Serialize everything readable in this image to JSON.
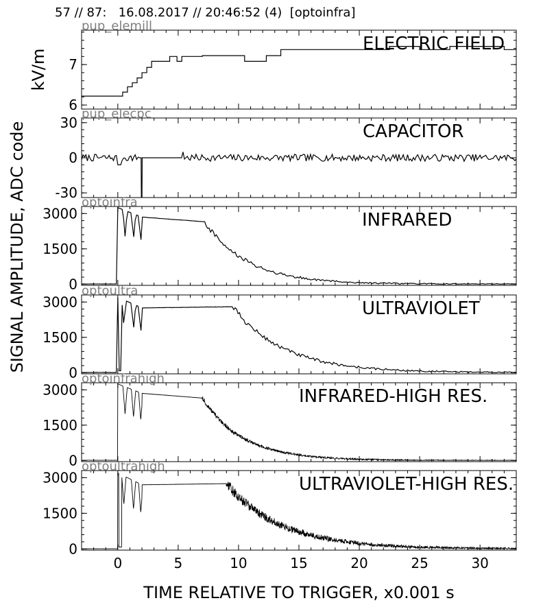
{
  "header": {
    "title": "57 // 87:   16.08.2017 // 20:46:52 (4)  [optoinfra]"
  },
  "figure": {
    "shared_ylabel_left": "SIGNAL AMPLITUDE,",
    "shared_ylabel_right": "ADC code",
    "xlabel": "TIME RELATIVE TO TRIGGER,   x0.001 s"
  },
  "chart_data": [
    {
      "type": "line",
      "channel": "pup_elemill",
      "title": "ELECTRIC FIELD",
      "ylabel": "kV/m",
      "xlim": [
        -3,
        33
      ],
      "ylim": [
        5.9,
        7.85
      ],
      "yticks": [
        6,
        7
      ],
      "xticks": [
        0,
        5,
        10,
        15,
        20,
        25,
        30
      ],
      "x": [
        -3,
        0.4,
        0.4,
        0.8,
        0.8,
        1.2,
        1.2,
        1.6,
        1.6,
        2.0,
        2.0,
        2.4,
        2.4,
        2.8,
        2.8,
        4.3,
        4.3,
        4.9,
        4.9,
        5.3,
        5.3,
        7.0,
        7.0,
        10.5,
        10.5,
        12.3,
        12.3,
        13.5,
        13.5,
        17.2,
        17.2,
        22.5,
        22.5,
        25.0,
        25.0,
        27.5,
        27.5,
        32.0,
        32.0,
        33.0
      ],
      "y": [
        6.22,
        6.22,
        6.32,
        6.32,
        6.45,
        6.45,
        6.55,
        6.55,
        6.67,
        6.67,
        6.8,
        6.8,
        6.93,
        6.93,
        7.08,
        7.08,
        7.2,
        7.2,
        7.08,
        7.08,
        7.2,
        7.2,
        7.22,
        7.22,
        7.08,
        7.08,
        7.22,
        7.22,
        7.37,
        7.37,
        7.37,
        7.37,
        7.45,
        7.45,
        7.37,
        7.37,
        7.45,
        7.45,
        7.37,
        7.37
      ],
      "grid": false
    },
    {
      "type": "line",
      "channel": "pup_elecpc",
      "title": "CAPACITOR",
      "ylabel": "ADC code",
      "xlim": [
        -3,
        33
      ],
      "ylim": [
        -34,
        34
      ],
      "yticks": [
        -30,
        0,
        30
      ],
      "xticks": [
        0,
        5,
        10,
        15,
        20,
        25,
        30
      ],
      "noise_level": 3,
      "features": {
        "dip_start": 0.0,
        "dip_end": 0.3,
        "dip_value": -6,
        "spike_time": 1.95,
        "spike_value": -34,
        "flat_from": 1.8,
        "flat_to": 5.4,
        "onset_time": 5.4,
        "onset_value": 5
      },
      "grid": false
    },
    {
      "type": "line",
      "channel": "optoinfra",
      "title": "INFRARED",
      "ylabel": "",
      "xlim": [
        -3,
        33
      ],
      "ylim": [
        -50,
        3300
      ],
      "yticks": [
        0,
        1500,
        3000
      ],
      "xticks": [
        0,
        5,
        10,
        15,
        20,
        25,
        30
      ],
      "samples": 300,
      "features": {
        "rise_time": 0.0,
        "peak": 3250,
        "plateau_start": 2.0,
        "plateau_start_value": 2850,
        "plateau_end": 7.2,
        "plateau_end_value": 2650,
        "decay_tau": 3.5,
        "decay_noise": 100,
        "dip_times": [
          0.6,
          1.3,
          1.9
        ],
        "dip_depth": 1100
      },
      "grid": false
    },
    {
      "type": "line",
      "channel": "optoultra",
      "title": "ULTRAVIOLET",
      "ylabel": "",
      "xlim": [
        -3,
        33
      ],
      "ylim": [
        -50,
        3300
      ],
      "yticks": [
        0,
        1500,
        3000
      ],
      "xticks": [
        0,
        5,
        10,
        15,
        20,
        25,
        30
      ],
      "samples": 300,
      "features": {
        "rise_time": 0.0,
        "peak": 3200,
        "early_dip_time": 0.2,
        "plateau_start": 2.0,
        "plateau_start_value": 2750,
        "plateau_end": 9.5,
        "plateau_end_value": 2800,
        "decay_tau": 4.2,
        "decay_noise": 110,
        "dip_times": [
          0.5,
          1.3,
          1.9
        ],
        "dip_depth": 1100
      },
      "grid": false
    },
    {
      "type": "line",
      "channel": "optoinfrahigh",
      "title": "INFRARED-HIGH RES.",
      "ylabel": "",
      "xlim": [
        -3,
        33
      ],
      "ylim": [
        -50,
        3300
      ],
      "yticks": [
        0,
        1500,
        3000
      ],
      "xticks": [
        0,
        5,
        10,
        15,
        20,
        25,
        30
      ],
      "samples": 1500,
      "features": {
        "rise_time": 0.0,
        "peak": 3250,
        "plateau_start": 2.0,
        "plateau_start_value": 2850,
        "plateau_end": 7.0,
        "plateau_end_value": 2650,
        "decay_tau": 3.3,
        "decay_noise": 90,
        "dip_times": [
          0.6,
          1.3,
          1.9
        ],
        "dip_depth": 1150
      },
      "grid": false
    },
    {
      "type": "line",
      "channel": "optoultrahigh",
      "title": "ULTRAVIOLET-HIGH RES.",
      "ylabel": "",
      "xlim": [
        -3,
        33
      ],
      "ylim": [
        -50,
        3300
      ],
      "yticks": [
        0,
        1500,
        3000
      ],
      "xticks": [
        0,
        5,
        10,
        15,
        20,
        25,
        30
      ],
      "samples": 1500,
      "features": {
        "rise_time": 0.0,
        "peak": 3200,
        "early_dip_time": 0.2,
        "plateau_start": 2.0,
        "plateau_start_value": 2700,
        "plateau_end": 9.0,
        "plateau_end_value": 2750,
        "decay_tau": 4.5,
        "decay_noise": 220,
        "dip_times": [
          0.5,
          1.3,
          1.9
        ],
        "dip_depth": 1200
      },
      "grid": false
    }
  ]
}
